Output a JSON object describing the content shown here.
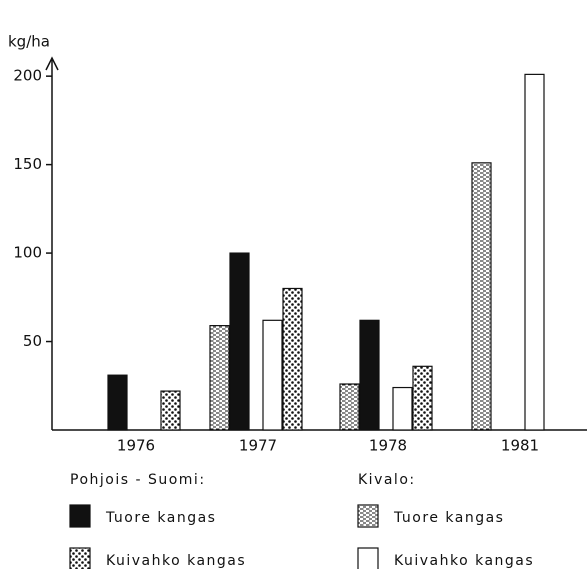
{
  "chart_data": {
    "type": "bar",
    "y_label": "kg/ha",
    "categories": [
      "1976",
      "1977",
      "1978",
      "1981"
    ],
    "legend_groups": [
      "Pohjois - Suomi:",
      "Kivalo:"
    ],
    "series": [
      {
        "name": "Tuore kangas",
        "color": "#111111",
        "hatch": "solid",
        "values": [
          31,
          100,
          62,
          null
        ]
      },
      {
        "name": "Kuivahko kangas",
        "color": "#111111",
        "hatch": "dots",
        "values": [
          22,
          80,
          36,
          null
        ]
      },
      {
        "name": "Tuore kangas",
        "color": "#111111",
        "hatch": "dashes",
        "values": [
          null,
          59,
          26,
          151
        ]
      },
      {
        "name": "Kuivahko kangas",
        "color": "#111111",
        "hatch": "none",
        "values": [
          null,
          62,
          24,
          201
        ]
      }
    ],
    "ylim": [
      0,
      208
    ],
    "yticks": [
      50,
      100,
      150,
      200
    ]
  }
}
